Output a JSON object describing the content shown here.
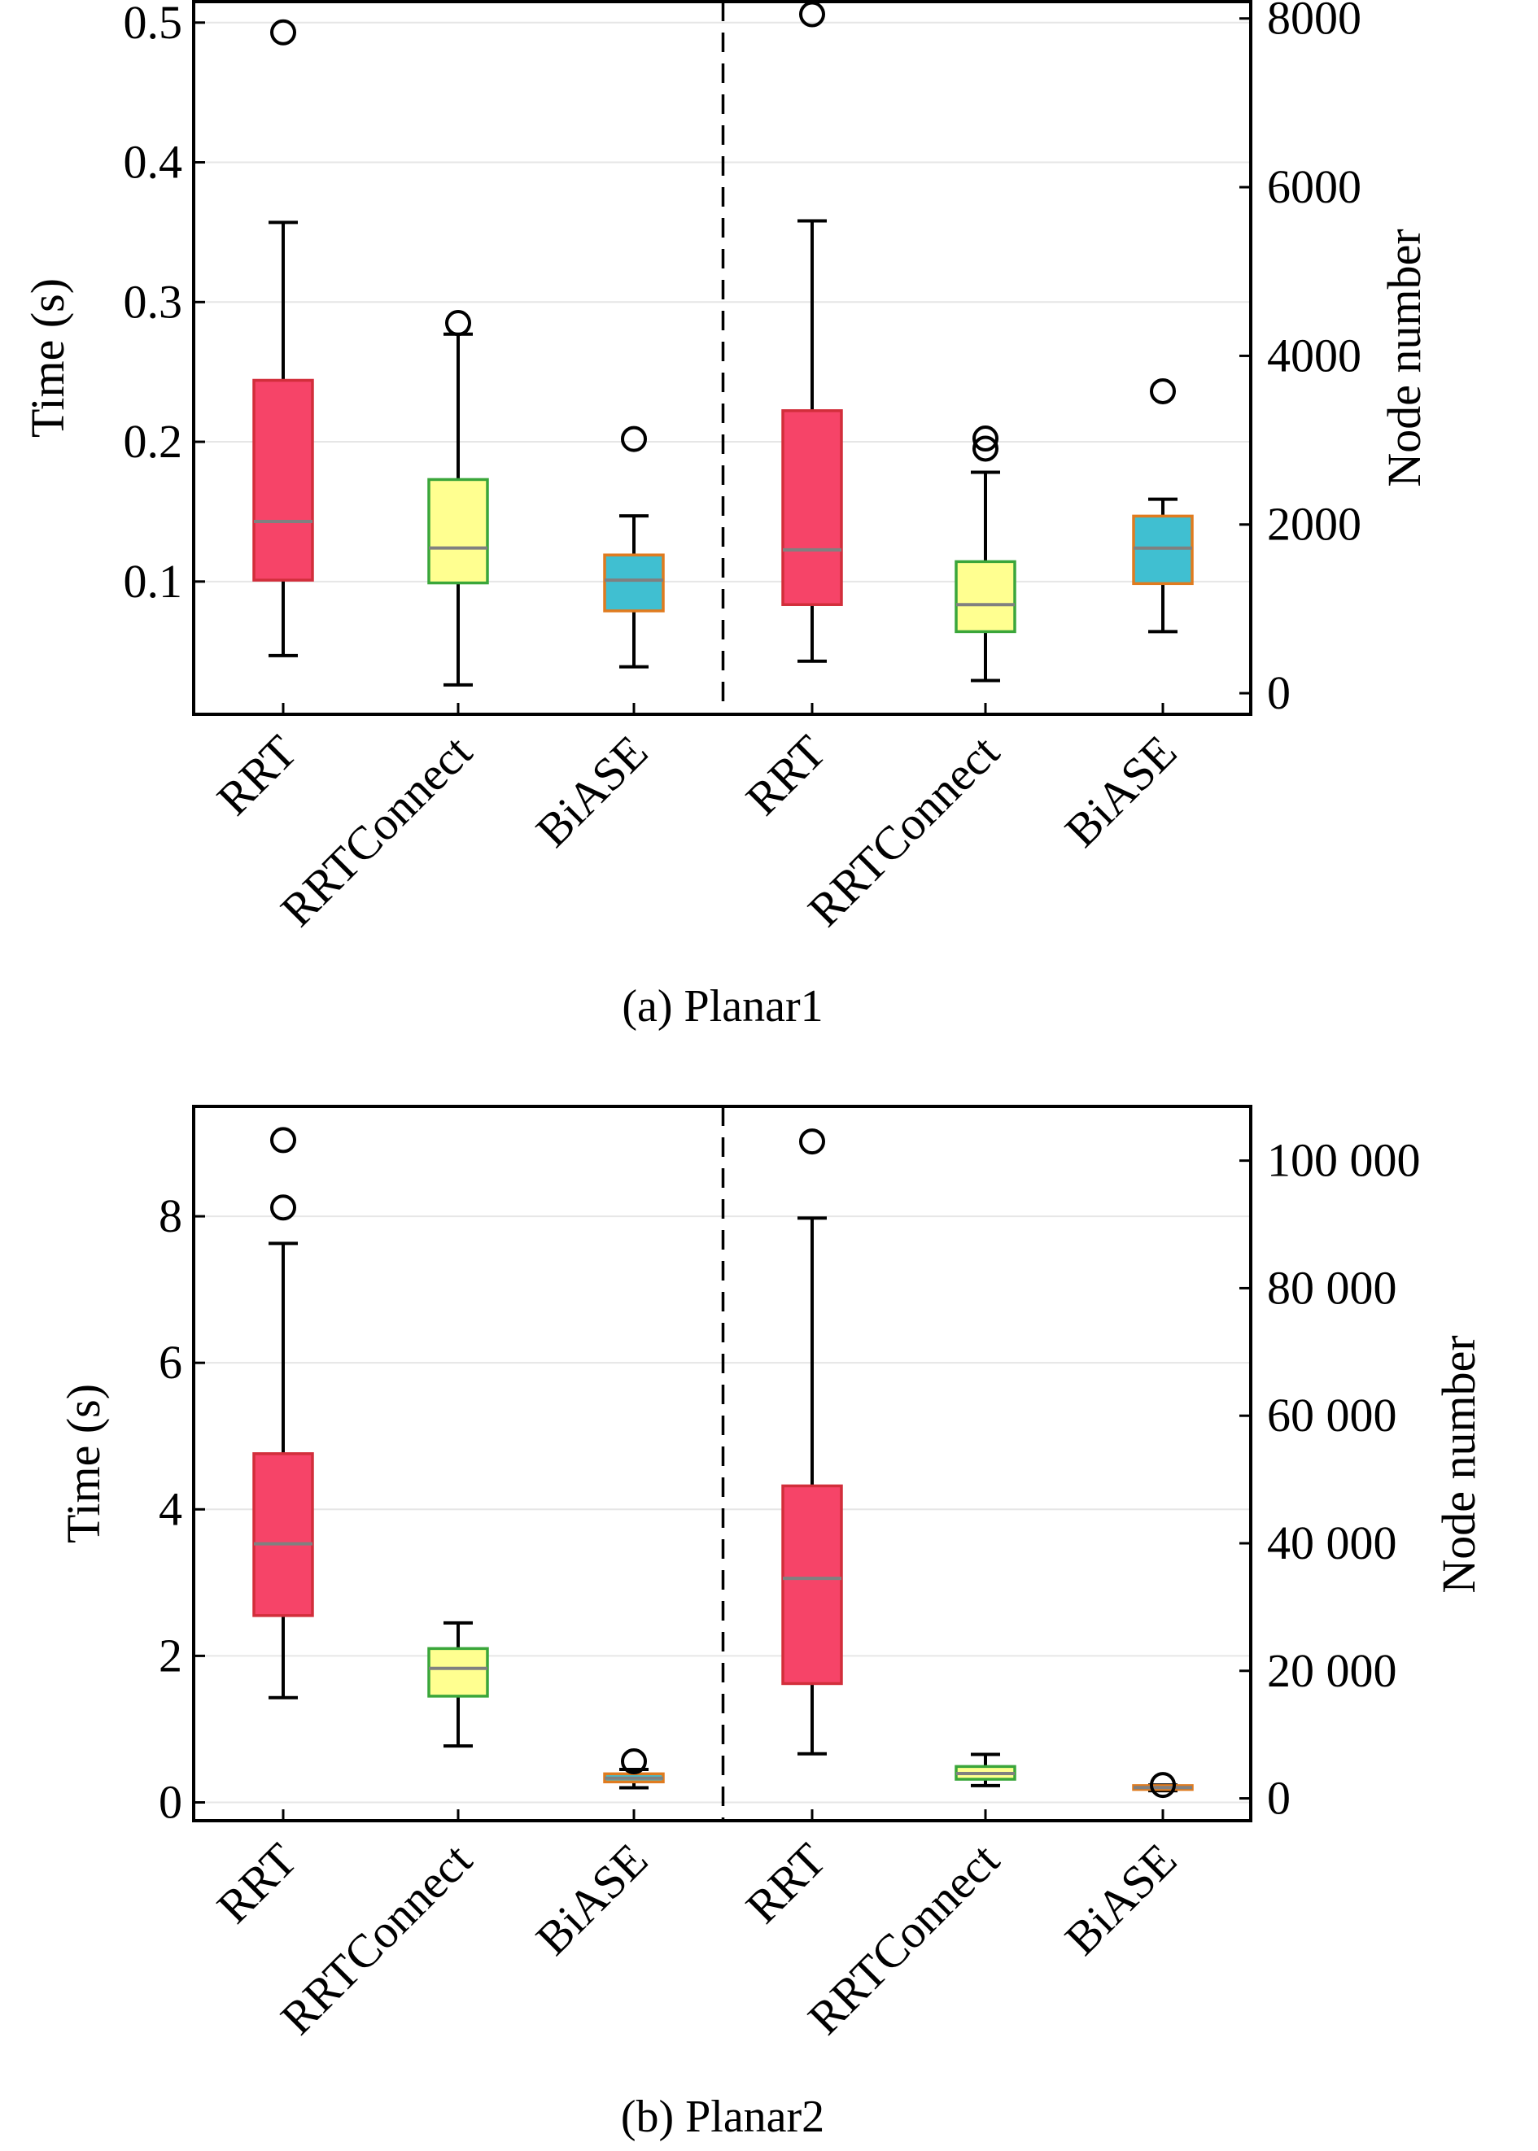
{
  "figure": {
    "captions": [
      "(a) Planar1",
      "(b) Planar2"
    ]
  },
  "colors": {
    "RRT": {
      "fill": "#F64468",
      "edge": "#D22E3B"
    },
    "RRTConnect": {
      "fill": "#FFFF90",
      "edge": "#3AA63A"
    },
    "BiASE": {
      "fill": "#40BFD1",
      "edge": "#E07B1F"
    },
    "median": "#808080",
    "grid": "#E6E6E6"
  },
  "chart_data": [
    {
      "type": "box",
      "caption": "(a) Planar1",
      "categories": [
        "RRT",
        "RRTConnect",
        "BiASE",
        "RRT",
        "RRTConnect",
        "BiASE"
      ],
      "left_axis": {
        "label": "Time (s)",
        "ylim": [
          0.005,
          0.515
        ],
        "ticks": [
          0.1,
          0.2,
          0.3,
          0.4,
          0.5
        ],
        "tick_labels": [
          "0.1",
          "0.2",
          "0.3",
          "0.4",
          "0.5"
        ]
      },
      "right_axis": {
        "label": "Node number",
        "ylim": [
          -250,
          8200
        ],
        "ticks": [
          0,
          2000,
          4000,
          6000,
          8000
        ],
        "tick_labels": [
          "0",
          "2000",
          "4000",
          "6000",
          "8000"
        ]
      },
      "divider": "dashed line between BiASE and RRT",
      "groups": [
        {
          "metric": "time",
          "axis": "left",
          "boxes": [
            {
              "name": "RRT",
              "whislo": 0.047,
              "q1": 0.101,
              "med": 0.143,
              "q3": 0.244,
              "whishi": 0.357,
              "fliers": [
                0.493
              ]
            },
            {
              "name": "RRTConnect",
              "whislo": 0.026,
              "q1": 0.099,
              "med": 0.124,
              "q3": 0.173,
              "whishi": 0.277,
              "fliers": [
                0.285
              ]
            },
            {
              "name": "BiASE",
              "whislo": 0.039,
              "q1": 0.079,
              "med": 0.101,
              "q3": 0.119,
              "whishi": 0.147,
              "fliers": [
                0.202
              ]
            }
          ]
        },
        {
          "metric": "node number",
          "axis": "right",
          "boxes": [
            {
              "name": "RRT",
              "whislo": 380,
              "q1": 1050,
              "med": 1700,
              "q3": 3350,
              "whishi": 5600,
              "fliers": [
                8050
              ]
            },
            {
              "name": "RRTConnect",
              "whislo": 150,
              "q1": 730,
              "med": 1050,
              "q3": 1560,
              "whishi": 2620,
              "fliers": [
                2900,
                3020
              ]
            },
            {
              "name": "BiASE",
              "whislo": 730,
              "q1": 1300,
              "med": 1720,
              "q3": 2100,
              "whishi": 2300,
              "fliers": [
                3580
              ]
            }
          ]
        }
      ]
    },
    {
      "type": "box",
      "caption": "(b) Planar2",
      "categories": [
        "RRT",
        "RRTConnect",
        "BiASE",
        "RRT",
        "RRTConnect",
        "BiASE"
      ],
      "left_axis": {
        "label": "Time (s)",
        "ylim": [
          -0.25,
          9.5
        ],
        "ticks": [
          0,
          2,
          4,
          6,
          8
        ],
        "tick_labels": [
          "0",
          "2",
          "4",
          "6",
          "8"
        ]
      },
      "right_axis": {
        "label": "Node number",
        "ylim": [
          -3500,
          108500
        ],
        "ticks": [
          0,
          20000,
          40000,
          60000,
          80000,
          100000
        ],
        "tick_labels": [
          "0",
          "20 000",
          "40 000",
          "60 000",
          "80 000",
          "100 000"
        ]
      },
      "divider": "dashed line between BiASE and RRT",
      "groups": [
        {
          "metric": "time",
          "axis": "left",
          "boxes": [
            {
              "name": "RRT",
              "whislo": 1.43,
              "q1": 2.55,
              "med": 3.53,
              "q3": 4.76,
              "whishi": 7.63,
              "fliers": [
                8.12,
                9.04
              ]
            },
            {
              "name": "RRTConnect",
              "whislo": 0.77,
              "q1": 1.45,
              "med": 1.83,
              "q3": 2.1,
              "whishi": 2.45,
              "fliers": []
            },
            {
              "name": "BiASE",
              "whislo": 0.2,
              "q1": 0.28,
              "med": 0.33,
              "q3": 0.39,
              "whishi": 0.45,
              "fliers": [
                0.56
              ]
            }
          ]
        },
        {
          "metric": "node number",
          "axis": "right",
          "boxes": [
            {
              "name": "RRT",
              "whislo": 7000,
              "q1": 18000,
              "med": 34500,
              "q3": 49000,
              "whishi": 91000,
              "fliers": [
                103000
              ]
            },
            {
              "name": "RRTConnect",
              "whislo": 2000,
              "q1": 3000,
              "med": 3900,
              "q3": 5000,
              "whishi": 6900,
              "fliers": []
            },
            {
              "name": "BiASE",
              "whislo": 1200,
              "q1": 1400,
              "med": 1700,
              "q3": 2000,
              "whishi": 2100,
              "fliers": [
                2100
              ]
            }
          ]
        }
      ]
    }
  ]
}
